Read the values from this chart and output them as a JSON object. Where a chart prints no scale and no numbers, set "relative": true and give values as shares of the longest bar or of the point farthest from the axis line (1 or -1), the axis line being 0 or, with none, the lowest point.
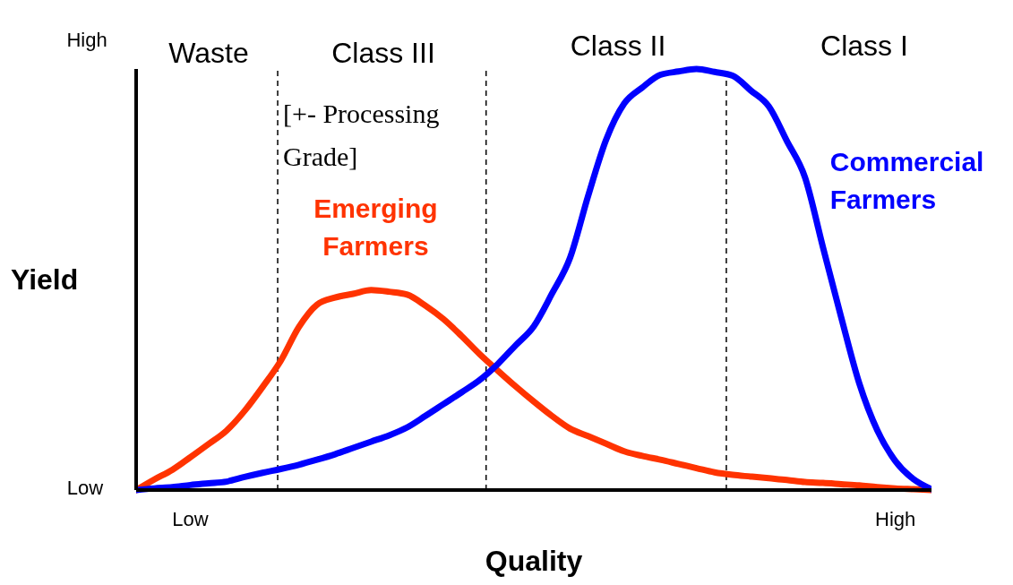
{
  "chart_data": {
    "type": "line",
    "xlabel": "Quality",
    "ylabel": "Yield",
    "relative": true,
    "categories": [
      null,
      null,
      null,
      "Low",
      null,
      null,
      null,
      null,
      null,
      null,
      null,
      null,
      null,
      null,
      null,
      null,
      null,
      null,
      null,
      null,
      null,
      null,
      null,
      null,
      null,
      null,
      null,
      null,
      null,
      null,
      null,
      null,
      null,
      null,
      null,
      null,
      null,
      null,
      null,
      null,
      null,
      null,
      "High",
      null,
      null
    ],
    "series": [
      {
        "name": "Emerging Farmers",
        "color": "#ff3300",
        "values": [
          0,
          0.025,
          0.048,
          0.078,
          0.109,
          0.141,
          0.188,
          0.245,
          0.307,
          0.387,
          0.44,
          0.457,
          0.466,
          0.475,
          0.471,
          0.464,
          0.438,
          0.406,
          0.366,
          0.323,
          0.284,
          0.246,
          0.21,
          0.176,
          0.146,
          0.128,
          0.11,
          0.092,
          0.081,
          0.072,
          0.062,
          0.052,
          0.042,
          0.036,
          0.032,
          0.028,
          0.024,
          0.019,
          0.017,
          0.014,
          0.011,
          0.007,
          0.004,
          0.002,
          0
        ]
      },
      {
        "name": "Commercial Farmers",
        "color": "#0000ff",
        "values": [
          0,
          0.004,
          0.007,
          0.012,
          0.016,
          0.02,
          0.031,
          0.041,
          0.05,
          0.06,
          0.072,
          0.085,
          0.1,
          0.115,
          0.13,
          0.149,
          0.176,
          0.204,
          0.232,
          0.261,
          0.299,
          0.344,
          0.389,
          0.466,
          0.551,
          0.698,
          0.832,
          0.918,
          0.956,
          0.986,
          0.994,
          1,
          0.993,
          0.984,
          0.949,
          0.911,
          0.829,
          0.743,
          0.576,
          0.411,
          0.254,
          0.142,
          0.069,
          0.026,
          0.002
        ]
      }
    ],
    "annotations": [
      "High",
      "Low",
      "Waste",
      "Class III",
      "Class II",
      "Class I",
      "[+- Processing Grade]"
    ],
    "legend": false,
    "grid": false,
    "marker": "none",
    "line_style": "solid"
  }
}
